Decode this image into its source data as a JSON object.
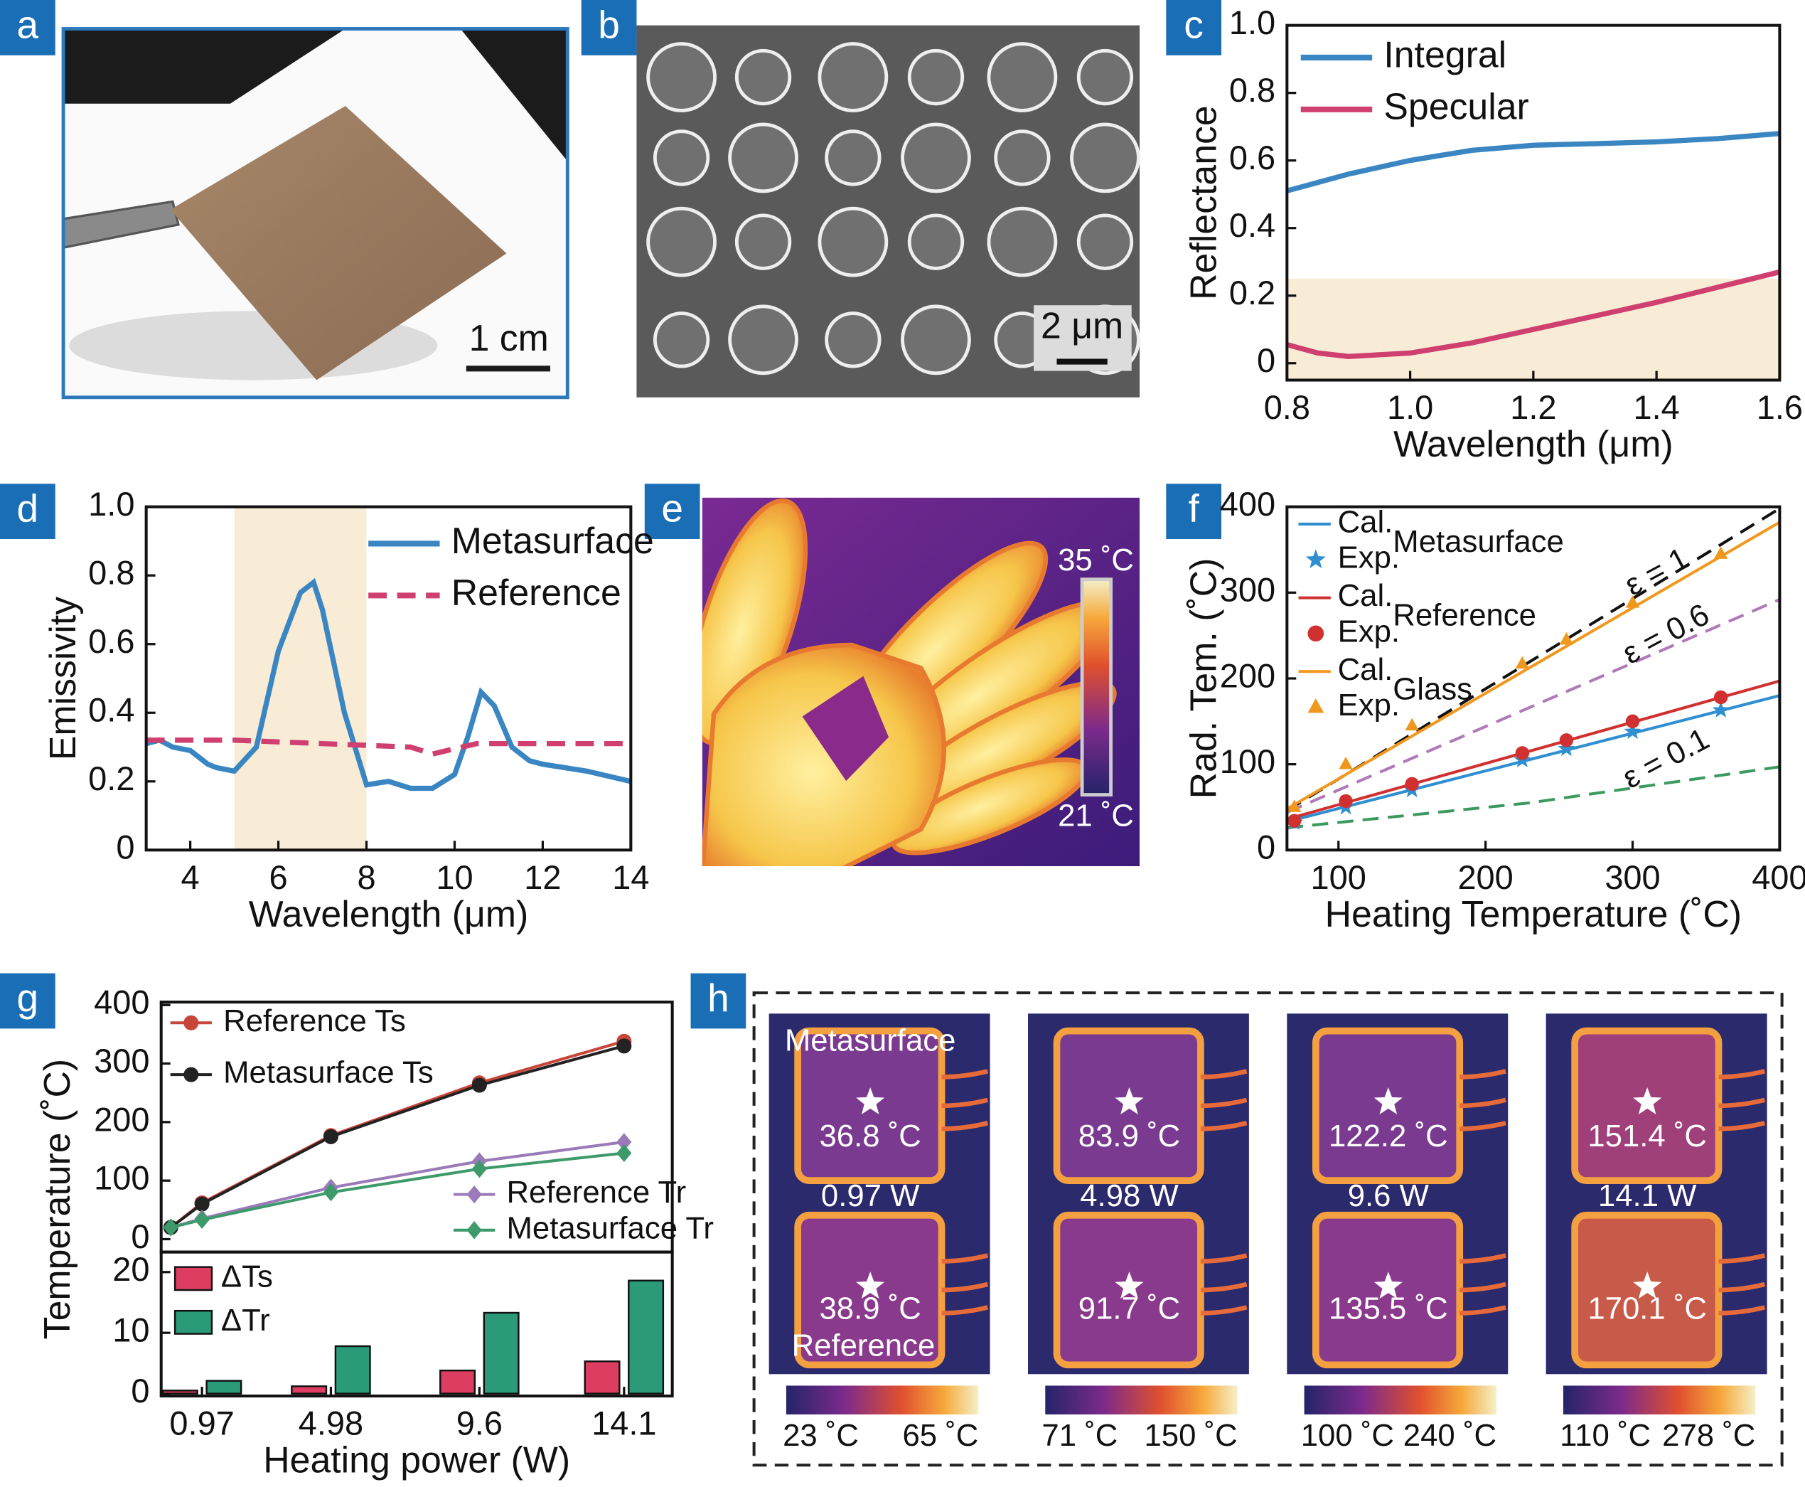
{
  "panel_labels": [
    "a",
    "b",
    "c",
    "d",
    "e",
    "f",
    "g",
    "h"
  ],
  "a": {
    "scale_bar": "1 cm"
  },
  "b": {
    "scale_bar": "2 μm"
  },
  "e": {
    "colorbar_max": "35 ˚C",
    "colorbar_min": "21 ˚C"
  },
  "h": {
    "top_label": "Metasurface",
    "bottom_label": "Reference",
    "columns": [
      {
        "power": "0.97 W",
        "top_temp": "36.8 ˚C",
        "bottom_temp": "38.9 ˚C",
        "colorbar_min": "23 ˚C",
        "colorbar_max": "65 ˚C"
      },
      {
        "power": "4.98 W",
        "top_temp": "83.9 ˚C",
        "bottom_temp": "91.7 ˚C",
        "colorbar_min": "71 ˚C",
        "colorbar_max": "150 ˚C"
      },
      {
        "power": "9.6 W",
        "top_temp": "122.2 ˚C",
        "bottom_temp": "135.5 ˚C",
        "colorbar_min": "100 ˚C",
        "colorbar_max": "240 ˚C"
      },
      {
        "power": "14.1 W",
        "top_temp": "151.4 ˚C",
        "bottom_temp": "170.1 ˚C",
        "colorbar_min": "110 ˚C",
        "colorbar_max": "278 ˚C"
      }
    ]
  },
  "chart_data": [
    {
      "type": "line",
      "xlabel": "Wavelength (μm)",
      "ylabel": "Reflectance",
      "xlim": [
        0.8,
        1.6
      ],
      "ylim": [
        -0.05,
        1.0
      ],
      "xticks": [
        0.8,
        {
          "value": 1,
          "label": "1.0"
        },
        1.2,
        1.4,
        1.6
      ],
      "yticks": [
        0,
        0.2,
        0.4,
        0.6,
        0.8,
        {
          "value": 1,
          "label": "1.0"
        }
      ],
      "shade": {
        "ylim": [
          -0.05,
          0.25
        ],
        "color": "#f8ecd6"
      },
      "series": [
        {
          "name": "Integral",
          "color": "#3a86c2",
          "x": [
            0.8,
            0.85,
            0.9,
            1.0,
            1.1,
            1.2,
            1.3,
            1.4,
            1.5,
            1.6
          ],
          "values": [
            0.51,
            0.535,
            0.56,
            0.6,
            0.63,
            0.645,
            0.65,
            0.655,
            0.665,
            0.68
          ]
        },
        {
          "name": "Specular",
          "color": "#cf3f6f",
          "x": [
            0.8,
            0.85,
            0.9,
            1.0,
            1.1,
            1.2,
            1.3,
            1.4,
            1.5,
            1.6
          ],
          "values": [
            0.055,
            0.03,
            0.02,
            0.03,
            0.06,
            0.1,
            0.14,
            0.18,
            0.225,
            0.27
          ]
        }
      ]
    },
    {
      "type": "line",
      "xlabel": "Wavelength (μm)",
      "ylabel": "Emissivity",
      "xlim": [
        3,
        14
      ],
      "ylim": [
        0,
        1
      ],
      "xticks": [
        4,
        6,
        8,
        10,
        12,
        14
      ],
      "yticks": [
        0,
        0.2,
        0.4,
        0.6,
        0.8,
        {
          "value": 1,
          "label": "1.0"
        }
      ],
      "shade": {
        "xlim": [
          5,
          8
        ],
        "color": "#f8ecd6"
      },
      "series": [
        {
          "name": "Metasurface",
          "color": "#3a86c2",
          "x": [
            3,
            3.3,
            3.6,
            4,
            4.2,
            4.4,
            4.6,
            5,
            5.5,
            6,
            6.5,
            6.8,
            7,
            7.5,
            8,
            8.5,
            9,
            9.5,
            10,
            10.3,
            10.6,
            10.9,
            11.3,
            11.7,
            12,
            12.5,
            13,
            14
          ],
          "values": [
            0.31,
            0.32,
            0.3,
            0.29,
            0.27,
            0.25,
            0.24,
            0.23,
            0.3,
            0.58,
            0.75,
            0.78,
            0.7,
            0.4,
            0.19,
            0.2,
            0.18,
            0.18,
            0.22,
            0.33,
            0.46,
            0.42,
            0.3,
            0.26,
            0.25,
            0.24,
            0.23,
            0.2
          ]
        },
        {
          "name": "Reference",
          "color": "#cf3f6f",
          "linestyle": "dashed",
          "x": [
            3,
            5,
            7,
            9,
            9.5,
            10.5,
            12,
            14
          ],
          "values": [
            0.32,
            0.32,
            0.31,
            0.3,
            0.28,
            0.31,
            0.31,
            0.31
          ]
        }
      ]
    },
    {
      "type": "line",
      "xlabel": "Heating Temperature (˚C)",
      "ylabel": "Rad. Tem. (˚C)",
      "xlim": [
        65,
        400
      ],
      "ylim": [
        0,
        400
      ],
      "xticks": [
        100,
        200,
        300,
        400
      ],
      "yticks": [
        0,
        100,
        200,
        300,
        400
      ],
      "series": [
        {
          "name": "Cal.",
          "group": "Metasurface",
          "color": "#2f8fd0",
          "x": [
            65,
            400
          ],
          "values": [
            33,
            180
          ]
        },
        {
          "name": "Exp.",
          "color": "#2f8fd0",
          "marker": "star",
          "linestyle": "none",
          "x": [
            70,
            105,
            150,
            225,
            255,
            300,
            360
          ],
          "values": [
            32,
            50,
            70,
            105,
            118,
            138,
            163
          ]
        },
        {
          "name": "Cal.",
          "group": "Reference",
          "color": "#d13030",
          "x": [
            65,
            400
          ],
          "values": [
            36,
            197
          ]
        },
        {
          "name": "Exp.",
          "color": "#d13030",
          "marker": "circle",
          "linestyle": "none",
          "x": [
            70,
            105,
            150,
            225,
            255,
            300,
            360
          ],
          "values": [
            34,
            57,
            77,
            113,
            128,
            150,
            178
          ]
        },
        {
          "name": "Cal.",
          "group": "Glass",
          "color": "#f0981e",
          "x": [
            65,
            400
          ],
          "values": [
            48,
            382
          ]
        },
        {
          "name": "Exp.",
          "color": "#f0981e",
          "marker": "triangle",
          "linestyle": "none",
          "x": [
            70,
            105,
            150,
            225,
            255,
            300,
            360
          ],
          "values": [
            50,
            100,
            145,
            217,
            245,
            288,
            345
          ]
        }
      ],
      "reference_lines": [
        {
          "label": "ε = 1",
          "color": "#111111",
          "x": [
            65,
            400
          ],
          "values": [
            46,
            398
          ]
        },
        {
          "label": "ε = 0.6",
          "color": "#b07ab8",
          "x": [
            65,
            400
          ],
          "values": [
            44,
            292
          ]
        },
        {
          "label": "ε = 0.1",
          "color": "#3d9a5e",
          "x": [
            65,
            230,
            400
          ],
          "values": [
            26,
            55,
            97
          ]
        }
      ]
    },
    {
      "type": "line",
      "ylabel": "Temperature (˚C)",
      "x": [
        0,
        0.97,
        4.98,
        9.6,
        14.1
      ],
      "xlim": [
        -0.3,
        15.6
      ],
      "ylim": [
        -22,
        405
      ],
      "yticks": [
        0,
        100,
        200,
        300,
        400
      ],
      "series": [
        {
          "name": "Reference Ts",
          "color": "#c8453a",
          "marker": "circle",
          "values": [
            20,
            62,
            177,
            267,
            338
          ]
        },
        {
          "name": "Metasurface Ts",
          "color": "#222222",
          "marker": "circle",
          "values": [
            20,
            60,
            175,
            263,
            330
          ]
        },
        {
          "name": "Reference Tr",
          "color": "#9a7ab8",
          "marker": "diamond",
          "values": [
            20,
            35,
            88,
            133,
            166
          ]
        },
        {
          "name": "Metasurface Tr",
          "color": "#3d9a6a",
          "marker": "diamond",
          "values": [
            20,
            33,
            80,
            120,
            147
          ]
        }
      ]
    },
    {
      "type": "bar",
      "xlabel": "Heating power (W)",
      "x": [
        0.97,
        4.98,
        9.6,
        14.1
      ],
      "xlim": [
        -0.3,
        15.6
      ],
      "ylim": [
        -0.4,
        23.3
      ],
      "xticks": [
        0.97,
        4.98,
        9.6,
        14.1
      ],
      "yticks": [
        0,
        10,
        20
      ],
      "series": [
        {
          "name": "ΔTs",
          "color": "#dc3d60",
          "values": [
            0.5,
            1.2,
            3.8,
            5.3
          ]
        },
        {
          "name": "ΔTr",
          "color": "#2a9a78",
          "values": [
            2.1,
            7.8,
            13.3,
            18.6
          ]
        }
      ]
    }
  ]
}
